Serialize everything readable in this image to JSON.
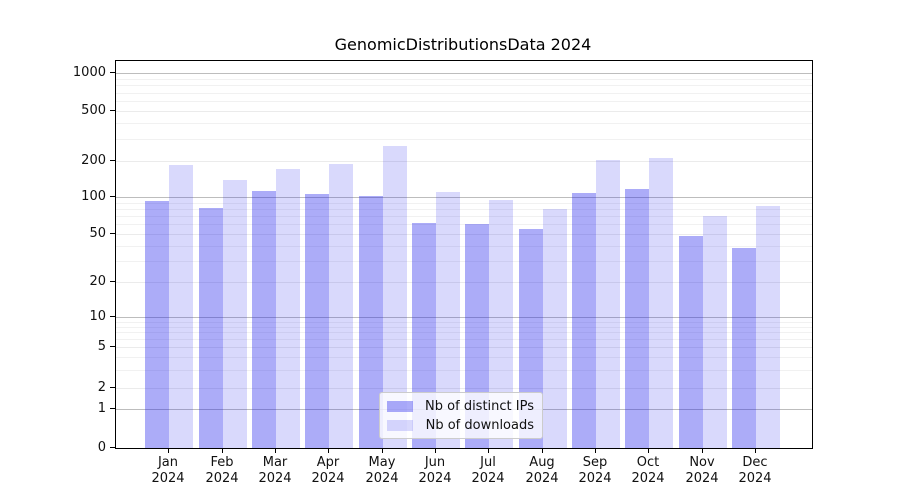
{
  "title": "GenomicDistributionsData 2024",
  "chart_data": {
    "type": "bar",
    "categories": [
      "Jan",
      "Feb",
      "Mar",
      "Apr",
      "May",
      "Jun",
      "Jul",
      "Aug",
      "Sep",
      "Oct",
      "Nov",
      "Dec"
    ],
    "category_year": "2024",
    "series": [
      {
        "name": "Nb of distinct IPs",
        "color": "rgba(30,30,235,0.37)",
        "values": [
          92,
          81,
          112,
          106,
          101,
          61,
          60,
          55,
          108,
          116,
          48,
          38
        ]
      },
      {
        "name": "Nb of downloads",
        "color": "rgba(30,30,235,0.17)",
        "values": [
          185,
          140,
          170,
          190,
          265,
          110,
          95,
          80,
          202,
          212,
          70,
          84
        ]
      }
    ],
    "yticks": [
      0,
      1,
      2,
      5,
      10,
      20,
      50,
      100,
      200,
      500,
      1000
    ],
    "yscale": "symlog",
    "ylim": [
      0,
      1200
    ],
    "grid": true,
    "legend_position": "lower center",
    "xlabel": "",
    "ylabel": ""
  }
}
